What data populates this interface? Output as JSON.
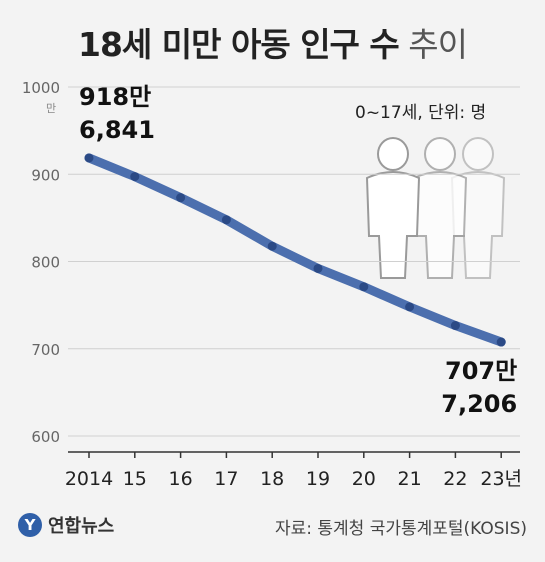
{
  "title_bold": "18세 미만 아동 인구 수",
  "title_light": "추이",
  "unit_note": "0~17세, 단위: 명",
  "footer": {
    "logo_mark": "Y",
    "logo_text": "연합뉴스",
    "source": "자료: 통계청 국가통계포털(KOSIS)"
  },
  "colors": {
    "line": "#4c6fae",
    "point": "#2b4a86",
    "grid": "#d0d0d0",
    "people": "#ffffff"
  },
  "chart_data": {
    "type": "line",
    "categories": [
      "2014",
      "15",
      "16",
      "17",
      "18",
      "19",
      "20",
      "21",
      "22",
      "23년"
    ],
    "series": [
      {
        "values": [
          9186841,
          8973000,
          8732000,
          8478000,
          8175000,
          7920000,
          7710000,
          7480000,
          7266000,
          7077206
        ]
      }
    ],
    "ylim": [
      600,
      1000
    ],
    "yticks": [
      "600",
      "700",
      "800",
      "900",
      "1000"
    ],
    "y_unit_label": "만",
    "annotations": [
      {
        "label_top": "918만",
        "label_bottom": "6,841"
      },
      {
        "label_top": "707만",
        "label_bottom": "7,206"
      }
    ],
    "grid": true
  }
}
